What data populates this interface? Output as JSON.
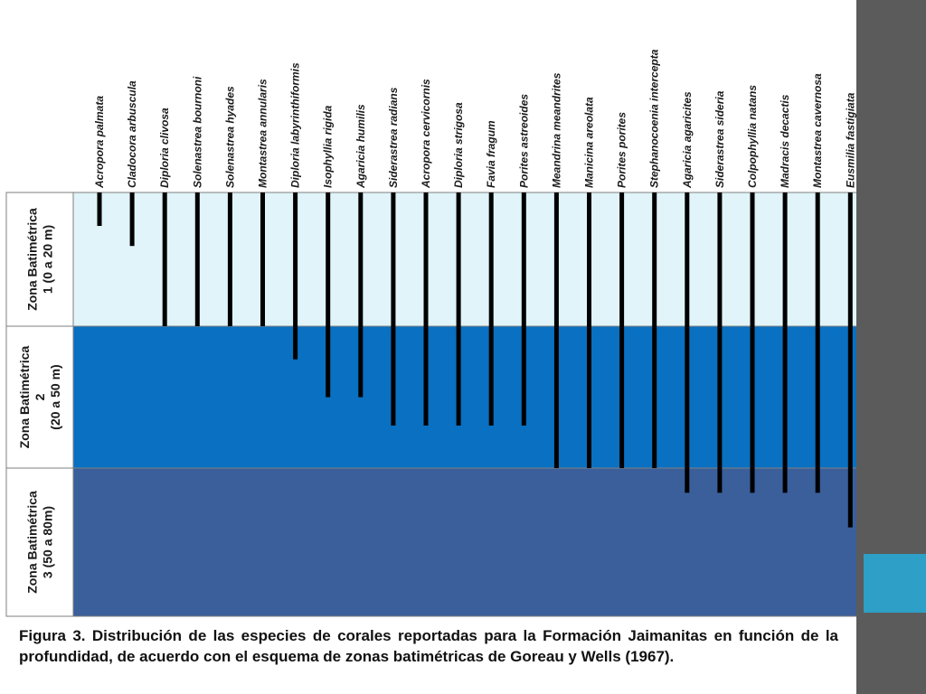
{
  "zones": [
    {
      "label_lines": [
        "Zona Batimétrica",
        "1  (0 a 20 m)"
      ],
      "depth_from": 0,
      "depth_to": 20,
      "color": "#e0f4f9"
    },
    {
      "label_lines": [
        "Zona Batimétrica",
        "2",
        "(20 a 50 m)"
      ],
      "depth_from": 20,
      "depth_to": 50,
      "color": "#0970c2"
    },
    {
      "label_lines": [
        "Zona Batimétrica",
        "3 (50 a 80m)"
      ],
      "depth_from": 50,
      "depth_to": 80,
      "color": "#3a5f9b"
    }
  ],
  "species": [
    {
      "name": "Acropora palmata",
      "depth_to": 5
    },
    {
      "name": "Cladocora arbuscula",
      "depth_to": 8
    },
    {
      "name": "Diploria clivosa",
      "depth_to": 20
    },
    {
      "name": "Solenastrea bournoni",
      "depth_to": 20
    },
    {
      "name": "Solenastrea hyades",
      "depth_to": 20
    },
    {
      "name": "Montastrea annularis",
      "depth_to": 20
    },
    {
      "name": "Diploria labyrinthiformis",
      "depth_to": 27
    },
    {
      "name": "Isophyllia rigida",
      "depth_to": 35
    },
    {
      "name": "Agaricia humilis",
      "depth_to": 35
    },
    {
      "name": "Siderastrea radians",
      "depth_to": 41
    },
    {
      "name": "Acropora cervicornis",
      "depth_to": 41
    },
    {
      "name": "Diploria strigosa",
      "depth_to": 41
    },
    {
      "name": "Favia fragum",
      "depth_to": 41
    },
    {
      "name": "Porites astreoides",
      "depth_to": 41
    },
    {
      "name": "Meandrina meandrites",
      "depth_to": 50
    },
    {
      "name": "Manicina areolata",
      "depth_to": 50
    },
    {
      "name": "Porites porites",
      "depth_to": 50
    },
    {
      "name": "Stephanocoenia intercepta",
      "depth_to": 50
    },
    {
      "name": "Agaricia agaricites",
      "depth_to": 55
    },
    {
      "name": "Siderastrea  sideria",
      "depth_to": 55
    },
    {
      "name": "Colpophyllia natans",
      "depth_to": 55
    },
    {
      "name": "Madracis decactis",
      "depth_to": 55
    },
    {
      "name": "Montastrea cavernosa",
      "depth_to": 55
    },
    {
      "name": "Eusmilia fastigiata",
      "depth_to": 62
    }
  ],
  "caption": "Figura 3. Distribución de las especies de corales reportadas para la Formación Jaimanitas en función de la profundidad, de acuerdo con el esquema de zonas batimétricas de Goreau y Wells (1967).",
  "colors": {
    "bar": "#000000",
    "border": "#7f7f7f",
    "label_column": "#ffffff",
    "side_panel": "#5b5b5b",
    "side_accent": "#2e9fc7"
  }
}
